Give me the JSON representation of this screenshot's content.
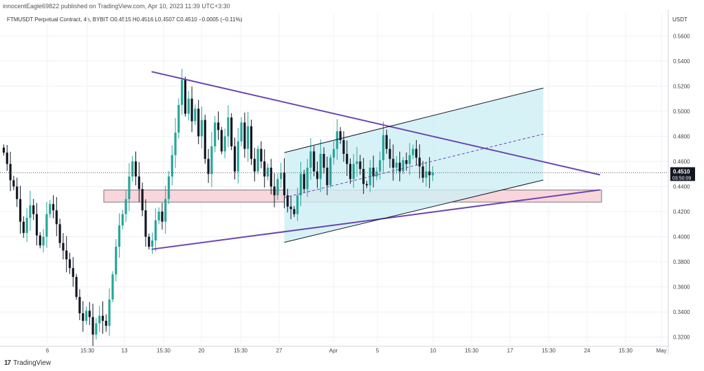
{
  "header": {
    "publisher": "innocentEagle69822 published on TradingView.com, Apr 10, 2023 11:39 UTC+3:30",
    "symbol_line": "FTMUSDT Perpetual Contract, 4h, BYBIT  O0.4515  H0.4516  L0.4507  C0.4510  −0.0005 (−0.11%)",
    "currency": "USDT"
  },
  "footer": {
    "brand": "TradingView",
    "logo_icon": "tradingview-logo-icon"
  },
  "colors": {
    "up": "#26a69a",
    "down": "#131722",
    "trendline": "#6a45b0",
    "zone_fill": "#f9d6dc",
    "channel_fill": "#cdeff5",
    "price_label_bg": "#131722"
  },
  "chart_data": {
    "type": "candlestick",
    "title": "",
    "xlabel": "",
    "ylabel": "",
    "x_ticks": [
      "6",
      "15:30",
      "13",
      "15:30",
      "20",
      "15:30",
      "27",
      "Apr",
      "5",
      "10",
      "15:30",
      "17",
      "15:30",
      "24",
      "15:30",
      "May"
    ],
    "y_ticks": [
      "0.3200",
      "0.3400",
      "0.3600",
      "0.3800",
      "0.4000",
      "0.4200",
      "0.4400",
      "0.4600",
      "0.4800",
      "0.5000",
      "0.5200",
      "0.5400",
      "0.5600"
    ],
    "ylim": [
      0.316,
      0.57
    ],
    "last_price": {
      "value": "0.4510",
      "countdown": "03:50:09"
    },
    "series": {
      "close": [
        0.467,
        0.458,
        0.445,
        0.44,
        0.43,
        0.412,
        0.403,
        0.415,
        0.425,
        0.418,
        0.401,
        0.393,
        0.4,
        0.418,
        0.426,
        0.421,
        0.41,
        0.395,
        0.389,
        0.382,
        0.375,
        0.368,
        0.352,
        0.339,
        0.333,
        0.341,
        0.336,
        0.322,
        0.331,
        0.337,
        0.333,
        0.329,
        0.35,
        0.37,
        0.392,
        0.409,
        0.418,
        0.43,
        0.448,
        0.46,
        0.448,
        0.438,
        0.421,
        0.4,
        0.392,
        0.397,
        0.413,
        0.42,
        0.412,
        0.43,
        0.448,
        0.465,
        0.483,
        0.505,
        0.525,
        0.498,
        0.51,
        0.492,
        0.502,
        0.48,
        0.493,
        0.462,
        0.45,
        0.472,
        0.491,
        0.485,
        0.468,
        0.48,
        0.495,
        0.472,
        0.452,
        0.476,
        0.491,
        0.47,
        0.488,
        0.462,
        0.452,
        0.47,
        0.46,
        0.448,
        0.455,
        0.44,
        0.433,
        0.446,
        0.451,
        0.433,
        0.424,
        0.422,
        0.418,
        0.433,
        0.45,
        0.438,
        0.455,
        0.468,
        0.452,
        0.446,
        0.466,
        0.455,
        0.441,
        0.463,
        0.47,
        0.484,
        0.477,
        0.466,
        0.458,
        0.446,
        0.458,
        0.46,
        0.454,
        0.442,
        0.441,
        0.455,
        0.448,
        0.452,
        0.461,
        0.481,
        0.47,
        0.462,
        0.455,
        0.459,
        0.452,
        0.461,
        0.458,
        0.465,
        0.47,
        0.463,
        0.456,
        0.447,
        0.452,
        0.449,
        0.451
      ]
    },
    "drawings": [
      {
        "kind": "trendline",
        "role": "upper-wedge",
        "from": [
          0,
          0.5315
        ],
        "to": [
          124,
          0.4493
        ]
      },
      {
        "kind": "trendline",
        "role": "lower-wedge",
        "from": [
          0,
          0.39
        ],
        "to": [
          124,
          0.4373
        ]
      },
      {
        "kind": "zone",
        "role": "support-zone",
        "x": [
          -11,
          124
        ],
        "y": [
          0.4276,
          0.4372
        ]
      },
      {
        "kind": "channel",
        "role": "rising-channel",
        "x": [
          30,
          71
        ],
        "lower": [
          0.3955,
          0.4452
        ],
        "upper": [
          0.467,
          0.5185
        ],
        "mid": [
          0.4312,
          0.4818
        ]
      }
    ]
  }
}
